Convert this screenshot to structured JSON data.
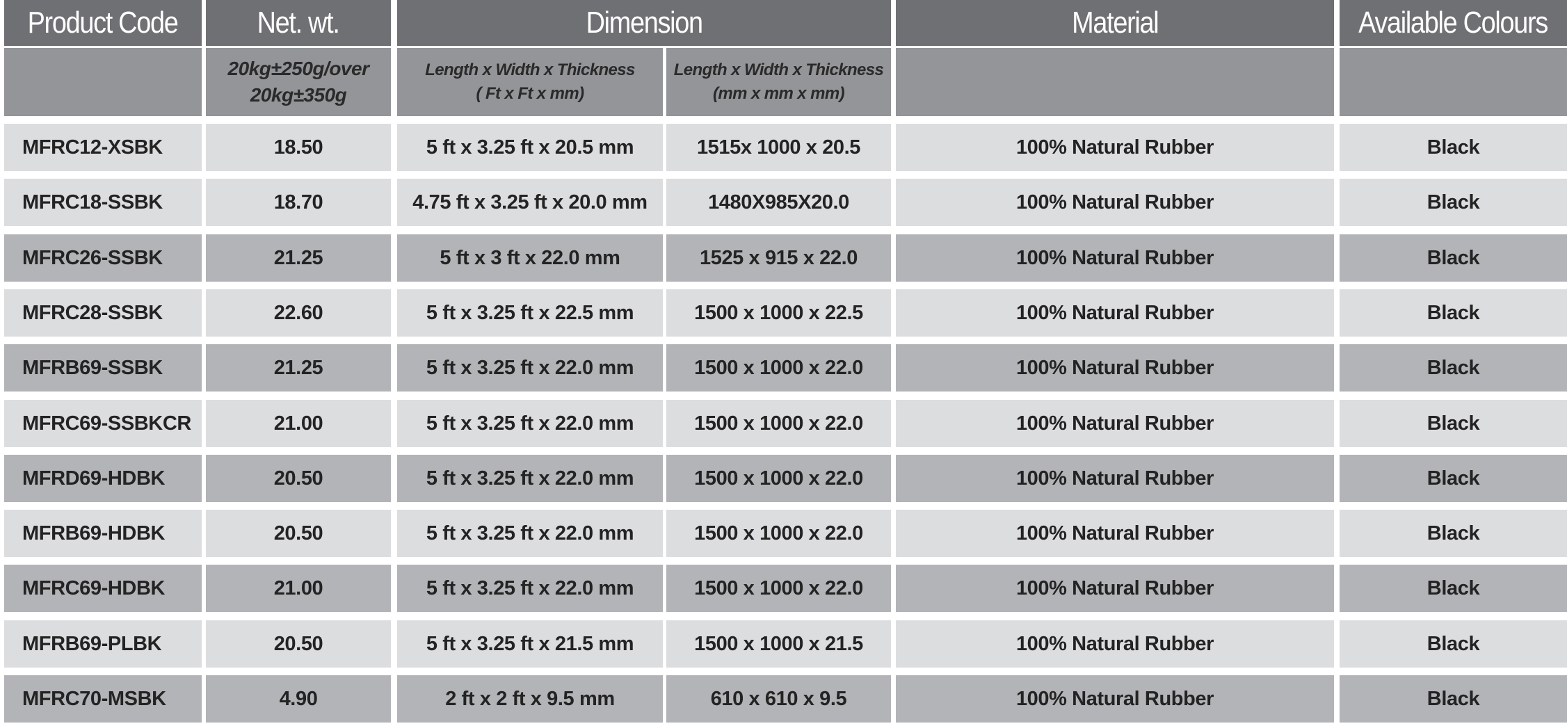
{
  "header": {
    "columns": [
      "Product Code",
      "Net. wt.",
      "Dimension",
      "Material",
      "Available Colours"
    ],
    "sub": {
      "net_wt_line1": "20kg±250g/over",
      "net_wt_line2": "20kg±350g",
      "dim_ft_line1": "Length x Width x Thickness",
      "dim_ft_line2": "( Ft x Ft x mm)",
      "dim_mm_line1": "Length x Width x Thickness",
      "dim_mm_line2": "(mm x mm x mm)"
    }
  },
  "rows": [
    {
      "code": "MFRC12-XSBK",
      "weight": "18.50",
      "dim_ft": "5 ft x 3.25 ft x 20.5 mm",
      "dim_mm": "1515x 1000 x 20.5",
      "material": "100% Natural Rubber",
      "colour": "Black"
    },
    {
      "code": "MFRC18-SSBK",
      "weight": "18.70",
      "dim_ft": "4.75 ft x 3.25 ft x 20.0 mm",
      "dim_mm": "1480X985X20.0",
      "material": "100% Natural Rubber",
      "colour": "Black"
    },
    {
      "code": "MFRC26-SSBK",
      "weight": "21.25",
      "dim_ft": "5 ft x 3 ft x 22.0 mm",
      "dim_mm": "1525 x 915 x 22.0",
      "material": "100% Natural Rubber",
      "colour": "Black"
    },
    {
      "code": "MFRC28-SSBK",
      "weight": "22.60",
      "dim_ft": "5 ft x 3.25 ft x 22.5 mm",
      "dim_mm": "1500 x 1000 x 22.5",
      "material": "100% Natural Rubber",
      "colour": "Black"
    },
    {
      "code": "MFRB69-SSBK",
      "weight": "21.25",
      "dim_ft": "5 ft x 3.25 ft x 22.0 mm",
      "dim_mm": "1500 x 1000 x 22.0",
      "material": "100% Natural Rubber",
      "colour": "Black"
    },
    {
      "code": "MFRC69-SSBKCR",
      "weight": "21.00",
      "dim_ft": "5 ft x 3.25 ft x 22.0 mm",
      "dim_mm": "1500 x 1000 x 22.0",
      "material": "100% Natural Rubber",
      "colour": "Black"
    },
    {
      "code": "MFRD69-HDBK",
      "weight": "20.50",
      "dim_ft": "5 ft x 3.25 ft x 22.0 mm",
      "dim_mm": "1500 x 1000 x 22.0",
      "material": "100% Natural Rubber",
      "colour": "Black"
    },
    {
      "code": "MFRB69-HDBK",
      "weight": "20.50",
      "dim_ft": "5 ft x 3.25 ft x 22.0 mm",
      "dim_mm": "1500 x 1000 x 22.0",
      "material": "100% Natural Rubber",
      "colour": "Black"
    },
    {
      "code": "MFRC69-HDBK",
      "weight": "21.00",
      "dim_ft": "5 ft x 3.25 ft x 22.0 mm",
      "dim_mm": "1500 x 1000 x 22.0",
      "material": "100% Natural Rubber",
      "colour": "Black"
    },
    {
      "code": "MFRB69-PLBK",
      "weight": "20.50",
      "dim_ft": "5 ft x 3.25 ft x 21.5 mm",
      "dim_mm": "1500 x 1000 x 21.5",
      "material": "100% Natural Rubber",
      "colour": "Black"
    },
    {
      "code": "MFRC70-MSBK",
      "weight": "4.90",
      "dim_ft": "2 ft x 2 ft x 9.5 mm",
      "dim_mm": "610 x 610 x 9.5",
      "material": "100% Natural Rubber",
      "colour": "Black"
    }
  ],
  "colors": {
    "header_dark": "#6f7073",
    "header_sub": "#939598",
    "row_light": "#dcdddf",
    "row_dark": "#b2b4b7"
  }
}
